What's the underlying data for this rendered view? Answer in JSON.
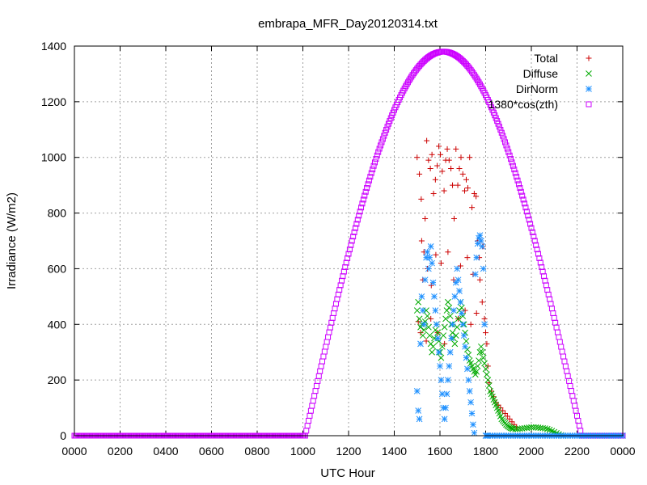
{
  "chart_data": {
    "type": "scatter",
    "title": "embrapa_MFR_Day20120314.txt",
    "xlabel": "UTC Hour",
    "ylabel": "Irradiance (W/m2)",
    "xlim": [
      0,
      24
    ],
    "ylim": [
      0,
      1400
    ],
    "grid": true,
    "legend_position": "top-right",
    "x_ticks": [
      {
        "value": 0,
        "label": "0000"
      },
      {
        "value": 2,
        "label": "0200"
      },
      {
        "value": 4,
        "label": "0400"
      },
      {
        "value": 6,
        "label": "0600"
      },
      {
        "value": 8,
        "label": "0800"
      },
      {
        "value": 10,
        "label": "1000"
      },
      {
        "value": 12,
        "label": "1200"
      },
      {
        "value": 14,
        "label": "1400"
      },
      {
        "value": 16,
        "label": "1600"
      },
      {
        "value": 18,
        "label": "1800"
      },
      {
        "value": 20,
        "label": "2000"
      },
      {
        "value": 22,
        "label": "2200"
      },
      {
        "value": 24,
        "label": "0000"
      }
    ],
    "y_ticks": [
      0,
      200,
      400,
      600,
      800,
      1000,
      1200,
      1400
    ],
    "series": [
      {
        "name": "Total",
        "marker": "plus",
        "color": "#cc0000",
        "points": [
          [
            15.0,
            1000
          ],
          [
            15.1,
            940
          ],
          [
            15.18,
            850
          ],
          [
            15.25,
            560
          ],
          [
            15.3,
            660
          ],
          [
            15.35,
            780
          ],
          [
            15.42,
            1060
          ],
          [
            15.5,
            990
          ],
          [
            15.58,
            960
          ],
          [
            15.65,
            1010
          ],
          [
            15.72,
            870
          ],
          [
            15.8,
            920
          ],
          [
            15.88,
            970
          ],
          [
            15.95,
            1040
          ],
          [
            16.02,
            1010
          ],
          [
            16.1,
            950
          ],
          [
            16.18,
            880
          ],
          [
            16.25,
            990
          ],
          [
            16.32,
            1030
          ],
          [
            16.4,
            990
          ],
          [
            16.48,
            960
          ],
          [
            16.55,
            900
          ],
          [
            16.62,
            780
          ],
          [
            16.7,
            1030
          ],
          [
            16.78,
            900
          ],
          [
            16.85,
            960
          ],
          [
            16.92,
            1000
          ],
          [
            17.0,
            940
          ],
          [
            17.08,
            880
          ],
          [
            17.15,
            920
          ],
          [
            17.22,
            890
          ],
          [
            17.3,
            1000
          ],
          [
            17.4,
            820
          ],
          [
            17.5,
            870
          ],
          [
            17.58,
            860
          ],
          [
            17.65,
            700
          ],
          [
            17.72,
            640
          ],
          [
            17.8,
            700
          ],
          [
            17.88,
            680
          ],
          [
            15.2,
            700
          ],
          [
            15.45,
            600
          ],
          [
            15.62,
            540
          ],
          [
            15.82,
            650
          ],
          [
            16.05,
            620
          ],
          [
            16.35,
            660
          ],
          [
            16.6,
            560
          ],
          [
            16.9,
            610
          ],
          [
            17.2,
            640
          ],
          [
            17.45,
            580
          ],
          [
            17.75,
            560
          ],
          [
            15.05,
            410
          ],
          [
            15.15,
            370
          ],
          [
            15.4,
            340
          ],
          [
            15.6,
            420
          ],
          [
            15.9,
            370
          ],
          [
            16.2,
            330
          ],
          [
            16.5,
            350
          ],
          [
            16.8,
            420
          ],
          [
            17.1,
            450
          ],
          [
            17.35,
            400
          ],
          [
            17.6,
            440
          ],
          [
            17.85,
            480
          ],
          [
            17.95,
            420
          ],
          [
            18.0,
            370
          ],
          [
            18.05,
            330
          ],
          [
            18.1,
            250
          ],
          [
            18.15,
            190
          ],
          [
            18.25,
            160
          ],
          [
            18.35,
            140
          ],
          [
            18.45,
            120
          ],
          [
            18.55,
            110
          ],
          [
            18.65,
            100
          ],
          [
            18.75,
            90
          ],
          [
            18.85,
            80
          ],
          [
            18.95,
            70
          ],
          [
            19.05,
            60
          ],
          [
            19.15,
            50
          ],
          [
            19.25,
            40
          ],
          [
            19.35,
            30
          ]
        ]
      },
      {
        "name": "Diffuse",
        "marker": "cross",
        "color": "#00aa00",
        "points": [
          [
            15.0,
            450
          ],
          [
            15.05,
            480
          ],
          [
            15.1,
            420
          ],
          [
            15.15,
            390
          ],
          [
            15.2,
            400
          ],
          [
            15.25,
            360
          ],
          [
            15.3,
            380
          ],
          [
            15.35,
            410
          ],
          [
            15.4,
            450
          ],
          [
            15.45,
            430
          ],
          [
            15.5,
            390
          ],
          [
            15.55,
            360
          ],
          [
            15.6,
            330
          ],
          [
            15.65,
            300
          ],
          [
            15.7,
            320
          ],
          [
            15.75,
            350
          ],
          [
            15.8,
            380
          ],
          [
            15.85,
            400
          ],
          [
            15.9,
            370
          ],
          [
            15.95,
            340
          ],
          [
            16.0,
            300
          ],
          [
            16.05,
            280
          ],
          [
            16.1,
            320
          ],
          [
            16.15,
            360
          ],
          [
            16.2,
            390
          ],
          [
            16.25,
            420
          ],
          [
            16.3,
            450
          ],
          [
            16.35,
            480
          ],
          [
            16.4,
            460
          ],
          [
            16.45,
            430
          ],
          [
            16.5,
            400
          ],
          [
            16.55,
            370
          ],
          [
            16.6,
            350
          ],
          [
            16.65,
            330
          ],
          [
            16.7,
            360
          ],
          [
            16.75,
            390
          ],
          [
            16.8,
            420
          ],
          [
            16.85,
            450
          ],
          [
            16.9,
            480
          ],
          [
            16.95,
            460
          ],
          [
            17.0,
            430
          ],
          [
            17.05,
            400
          ],
          [
            17.1,
            370
          ],
          [
            17.15,
            340
          ],
          [
            17.2,
            310
          ],
          [
            17.25,
            290
          ],
          [
            17.3,
            270
          ],
          [
            17.35,
            260
          ],
          [
            17.4,
            250
          ],
          [
            17.45,
            240
          ],
          [
            17.5,
            230
          ],
          [
            17.55,
            220
          ],
          [
            17.6,
            230
          ],
          [
            17.65,
            250
          ],
          [
            17.7,
            270
          ],
          [
            17.75,
            300
          ],
          [
            17.8,
            320
          ],
          [
            17.85,
            300
          ],
          [
            17.9,
            280
          ],
          [
            17.95,
            260
          ],
          [
            18.0,
            240
          ],
          [
            18.05,
            220
          ],
          [
            18.1,
            200
          ],
          [
            18.15,
            180
          ],
          [
            18.2,
            160
          ],
          [
            18.25,
            150
          ],
          [
            18.3,
            140
          ],
          [
            18.35,
            130
          ],
          [
            18.4,
            120
          ],
          [
            18.45,
            110
          ],
          [
            18.5,
            100
          ],
          [
            18.55,
            90
          ],
          [
            18.6,
            80
          ],
          [
            18.65,
            70
          ],
          [
            18.7,
            60
          ],
          [
            18.75,
            55
          ],
          [
            18.8,
            50
          ],
          [
            18.85,
            45
          ],
          [
            18.9,
            40
          ],
          [
            18.95,
            36
          ],
          [
            19.0,
            33
          ],
          [
            19.05,
            30
          ],
          [
            19.1,
            28
          ],
          [
            19.15,
            26
          ],
          [
            19.2,
            25
          ],
          [
            19.3,
            24
          ],
          [
            19.4,
            24
          ],
          [
            19.5,
            25
          ],
          [
            19.6,
            26
          ],
          [
            19.7,
            27
          ],
          [
            19.8,
            28
          ],
          [
            19.9,
            29
          ],
          [
            20.0,
            30
          ],
          [
            20.1,
            30
          ],
          [
            20.2,
            30
          ],
          [
            20.3,
            29
          ],
          [
            20.4,
            28
          ],
          [
            20.5,
            27
          ],
          [
            20.6,
            26
          ],
          [
            20.7,
            24
          ],
          [
            20.8,
            21
          ],
          [
            20.9,
            17
          ],
          [
            21.0,
            13
          ],
          [
            21.1,
            9
          ],
          [
            21.2,
            5
          ],
          [
            21.3,
            2
          ],
          [
            21.4,
            0
          ]
        ]
      },
      {
        "name": "DirNorm",
        "marker": "star",
        "color": "#1e90ff",
        "points": [
          [
            15.0,
            160
          ],
          [
            15.05,
            90
          ],
          [
            15.1,
            60
          ],
          [
            15.15,
            330
          ],
          [
            15.2,
            500
          ],
          [
            15.25,
            450
          ],
          [
            15.3,
            400
          ],
          [
            15.35,
            560
          ],
          [
            15.4,
            640
          ],
          [
            15.45,
            660
          ],
          [
            15.5,
            600
          ],
          [
            15.55,
            640
          ],
          [
            15.6,
            680
          ],
          [
            15.65,
            620
          ],
          [
            15.7,
            550
          ],
          [
            15.75,
            500
          ],
          [
            15.8,
            450
          ],
          [
            15.85,
            400
          ],
          [
            15.9,
            350
          ],
          [
            15.95,
            300
          ],
          [
            16.0,
            250
          ],
          [
            16.05,
            200
          ],
          [
            16.1,
            150
          ],
          [
            16.15,
            100
          ],
          [
            16.2,
            60
          ],
          [
            16.25,
            100
          ],
          [
            16.3,
            150
          ],
          [
            16.35,
            200
          ],
          [
            16.4,
            250
          ],
          [
            16.45,
            300
          ],
          [
            16.5,
            350
          ],
          [
            16.55,
            400
          ],
          [
            16.6,
            450
          ],
          [
            16.65,
            500
          ],
          [
            16.7,
            550
          ],
          [
            16.75,
            600
          ],
          [
            16.8,
            560
          ],
          [
            16.85,
            520
          ],
          [
            16.9,
            480
          ],
          [
            16.95,
            440
          ],
          [
            17.0,
            400
          ],
          [
            17.05,
            360
          ],
          [
            17.1,
            320
          ],
          [
            17.15,
            280
          ],
          [
            17.2,
            240
          ],
          [
            17.25,
            200
          ],
          [
            17.3,
            160
          ],
          [
            17.35,
            120
          ],
          [
            17.4,
            80
          ],
          [
            17.45,
            40
          ],
          [
            17.5,
            10
          ],
          [
            17.55,
            580
          ],
          [
            17.6,
            640
          ],
          [
            17.65,
            690
          ],
          [
            17.7,
            710
          ],
          [
            17.75,
            720
          ],
          [
            17.8,
            700
          ],
          [
            17.85,
            680
          ],
          [
            17.9,
            600
          ],
          [
            17.95,
            400
          ],
          [
            18.0,
            0
          ],
          [
            18.05,
            0
          ],
          [
            18.1,
            0
          ],
          [
            18.2,
            0
          ],
          [
            18.3,
            0
          ],
          [
            18.4,
            0
          ],
          [
            18.5,
            0
          ],
          [
            18.6,
            0
          ],
          [
            18.7,
            0
          ],
          [
            18.8,
            0
          ],
          [
            18.9,
            0
          ],
          [
            19.0,
            0
          ],
          [
            19.1,
            0
          ],
          [
            19.2,
            0
          ],
          [
            19.3,
            0
          ],
          [
            19.4,
            0
          ],
          [
            19.5,
            0
          ],
          [
            19.6,
            0
          ],
          [
            19.7,
            0
          ],
          [
            19.8,
            0
          ],
          [
            19.9,
            0
          ],
          [
            20.0,
            0
          ],
          [
            20.1,
            0
          ],
          [
            20.2,
            0
          ],
          [
            20.3,
            0
          ],
          [
            20.4,
            0
          ],
          [
            20.5,
            0
          ],
          [
            20.6,
            0
          ],
          [
            20.7,
            0
          ],
          [
            20.8,
            0
          ],
          [
            20.9,
            0
          ],
          [
            21.0,
            0
          ],
          [
            21.1,
            0
          ],
          [
            21.2,
            0
          ],
          [
            21.3,
            0
          ],
          [
            21.4,
            0
          ],
          [
            21.5,
            0
          ],
          [
            21.6,
            0
          ],
          [
            21.7,
            0
          ],
          [
            21.8,
            0
          ],
          [
            21.9,
            0
          ],
          [
            22.0,
            0
          ],
          [
            22.1,
            0
          ],
          [
            22.2,
            0
          ],
          [
            22.3,
            0
          ],
          [
            22.4,
            0
          ],
          [
            22.5,
            0
          ],
          [
            22.6,
            0
          ],
          [
            22.7,
            0
          ],
          [
            22.8,
            0
          ],
          [
            22.9,
            0
          ],
          [
            23.0,
            0
          ],
          [
            23.1,
            0
          ],
          [
            23.2,
            0
          ],
          [
            23.3,
            0
          ],
          [
            23.4,
            0
          ],
          [
            23.5,
            0
          ],
          [
            23.6,
            0
          ],
          [
            23.7,
            0
          ],
          [
            23.8,
            0
          ],
          [
            23.9,
            0
          ],
          [
            24.0,
            0
          ]
        ]
      },
      {
        "name": "1380*cos(zth)",
        "marker": "square",
        "color": "#cc00ff",
        "amplitude": 1380,
        "nonzero_range": [
          10.1,
          22.2
        ]
      }
    ]
  }
}
